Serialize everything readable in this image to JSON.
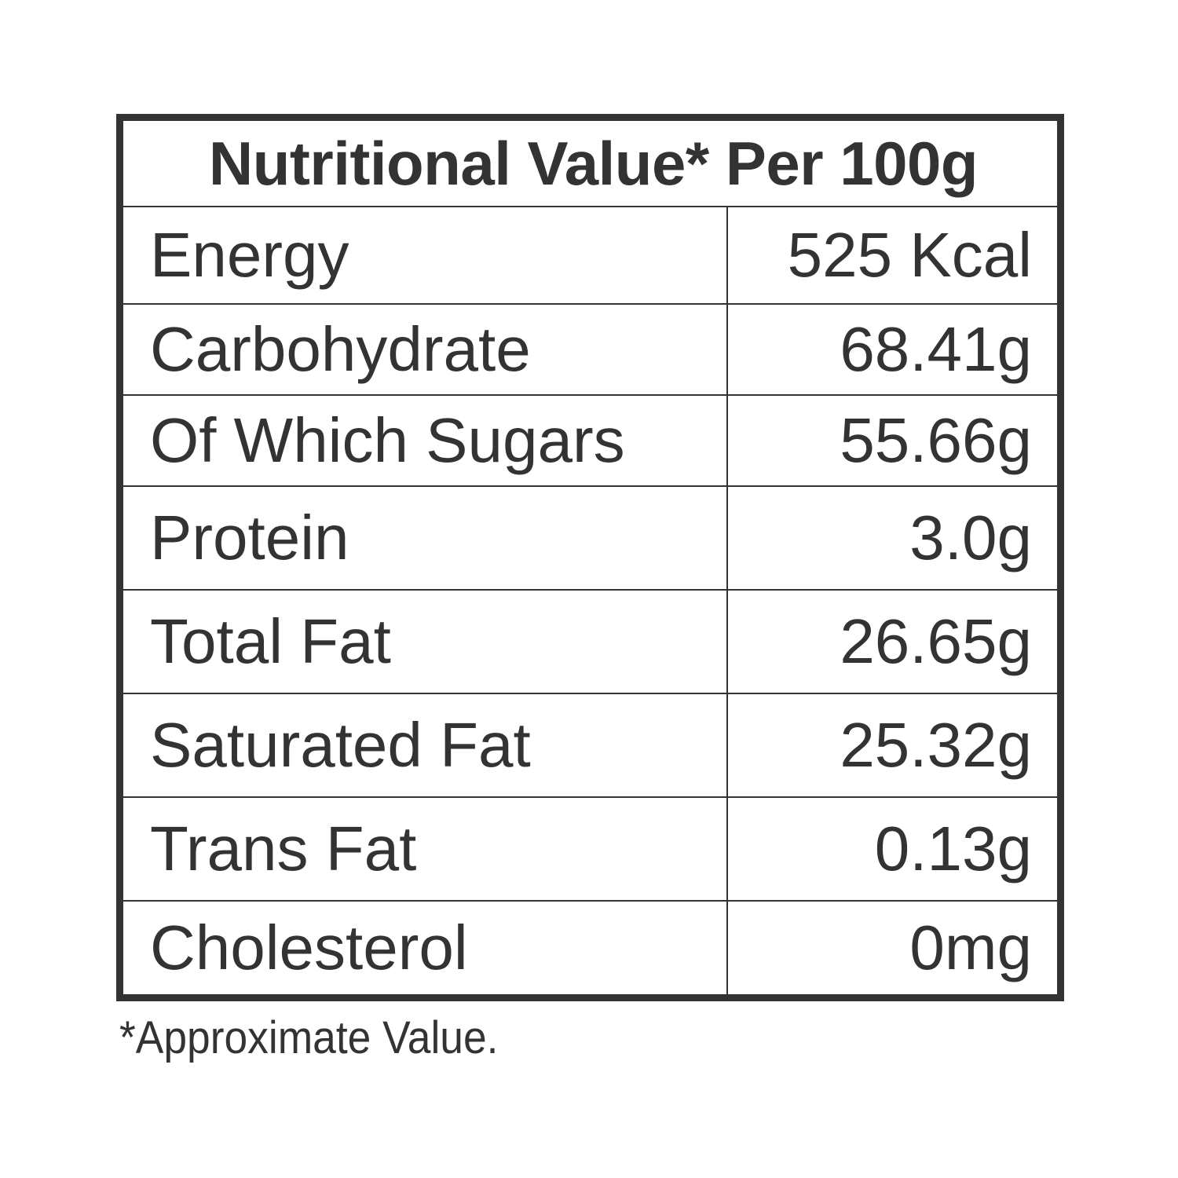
{
  "table": {
    "title": "Nutritional Value* Per 100g",
    "rows": [
      {
        "name": "Energy",
        "value": "525 Kcal"
      },
      {
        "name": "Carbohydrate",
        "value": "68.41g"
      },
      {
        "name": "Of Which Sugars",
        "value": "55.66g"
      },
      {
        "name": "Protein",
        "value": "3.0g"
      },
      {
        "name": "Total Fat",
        "value": "26.65g"
      },
      {
        "name": "Saturated Fat",
        "value": "25.32g"
      },
      {
        "name": "Trans Fat",
        "value": "0.13g"
      },
      {
        "name": "Cholesterol",
        "value": "0mg"
      }
    ]
  },
  "footnote": "*Approximate Value.",
  "colors": {
    "text": "#333333",
    "border": "#333333",
    "background": "#ffffff"
  }
}
